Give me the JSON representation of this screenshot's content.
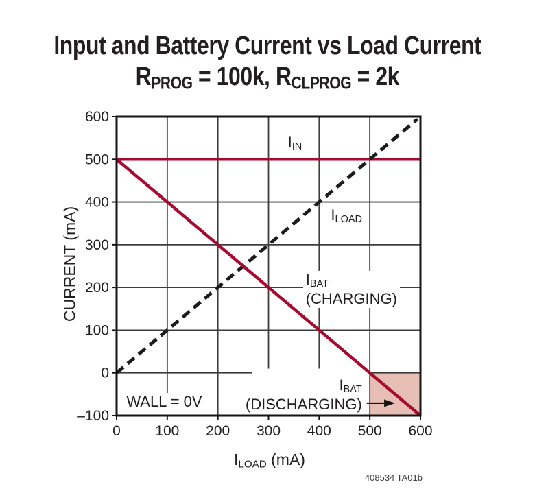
{
  "chart_data": {
    "type": "line",
    "title": "Input and Battery Current vs Load Current",
    "subtitle": {
      "r1": "R",
      "s1": "PROG",
      "mid": " = 100k, ",
      "r2": "R",
      "s2": "CLPROG",
      "end": " = 2k"
    },
    "xlabel": {
      "main": "I",
      "sub": "LOAD",
      "rest": " (mA)"
    },
    "ylabel": "CURRENT (mA)",
    "xlim": [
      0,
      600
    ],
    "ylim": [
      -100,
      600
    ],
    "x_ticks": [
      0,
      100,
      200,
      300,
      400,
      500,
      600
    ],
    "y_ticks": [
      600,
      500,
      400,
      300,
      200,
      100,
      0,
      -100
    ],
    "grid_on": true,
    "grid_color": "#3d3d3d",
    "axis_color": "#141414",
    "accent_color": "#a60a30",
    "shaded_region": {
      "x1": 500,
      "x2": 600,
      "y1": -100,
      "y2": 0,
      "fill": "#e7beb3"
    },
    "gridlines": {
      "vertical": [
        {
          "x": 100,
          "y1": 600,
          "y2": -48
        },
        {
          "x": 200,
          "y1": 600,
          "y2": -100
        },
        {
          "x": 300,
          "y1": 600,
          "y2": 10
        },
        {
          "x": 400,
          "y1": 600,
          "y2": 10
        },
        {
          "x": 500,
          "y1": 600,
          "y2": -100
        }
      ],
      "horizontal": [
        {
          "y": 0,
          "x1": 0,
          "x2": 268
        },
        {
          "y": 0,
          "x1": 500,
          "x2": 600
        },
        {
          "y": 100,
          "x1": 0,
          "x2": 600
        },
        {
          "y": 200,
          "x1": 0,
          "x2": 600
        },
        {
          "y": 300,
          "x1": 0,
          "x2": 600
        },
        {
          "y": 400,
          "x1": 0,
          "x2": 600
        },
        {
          "y": 500,
          "x1": 0,
          "x2": 600
        }
      ]
    },
    "series": [
      {
        "name": "IIN",
        "points": [
          [
            0,
            500
          ],
          [
            600,
            500
          ]
        ],
        "dash": null,
        "color": "#a60a30",
        "width": 4.5
      },
      {
        "name": "ILOAD",
        "points": [
          [
            0,
            0
          ],
          [
            594,
            594
          ]
        ],
        "dash": "13 8",
        "color": "#1c1c1c",
        "width": 5
      },
      {
        "name": "IBAT",
        "points": [
          [
            0,
            500
          ],
          [
            600,
            -100
          ]
        ],
        "dash": null,
        "color": "#a60a30",
        "width": 4.5
      }
    ],
    "annotations": [
      {
        "id": "iin",
        "x": 352,
        "y": 534,
        "anchor": "center",
        "lines": [
          [
            [
              "I",
              0
            ],
            [
              "IN",
              1
            ]
          ]
        ]
      },
      {
        "id": "iload",
        "x": 454,
        "y": 364,
        "anchor": "center",
        "lines": [
          [
            [
              "I",
              0
            ],
            [
              "LOAD",
              1
            ]
          ]
        ]
      },
      {
        "id": "ibat-charging",
        "x": 368,
        "y": 195,
        "anchor": "left",
        "lines": [
          [
            [
              "I",
              0
            ],
            [
              "BAT",
              1
            ]
          ],
          [
            [
              "(CHARGING)",
              0
            ]
          ]
        ]
      },
      {
        "id": "ibat-discharging",
        "x": 490,
        "y": -52,
        "anchor": "right",
        "lines": [
          [
            [
              "I",
              0
            ],
            [
              "BAT",
              1
            ]
          ],
          [
            [
              "(DISCHARGING)",
              0
            ]
          ]
        ]
      },
      {
        "id": "wall",
        "x": 14,
        "y": -68,
        "anchor": "left",
        "lines": [
          [
            [
              "WALL = 0V",
              0
            ]
          ]
        ]
      }
    ],
    "arrow": {
      "x1": 494,
      "x2": 550,
      "y": -71
    },
    "note": "408534 TA01b"
  }
}
